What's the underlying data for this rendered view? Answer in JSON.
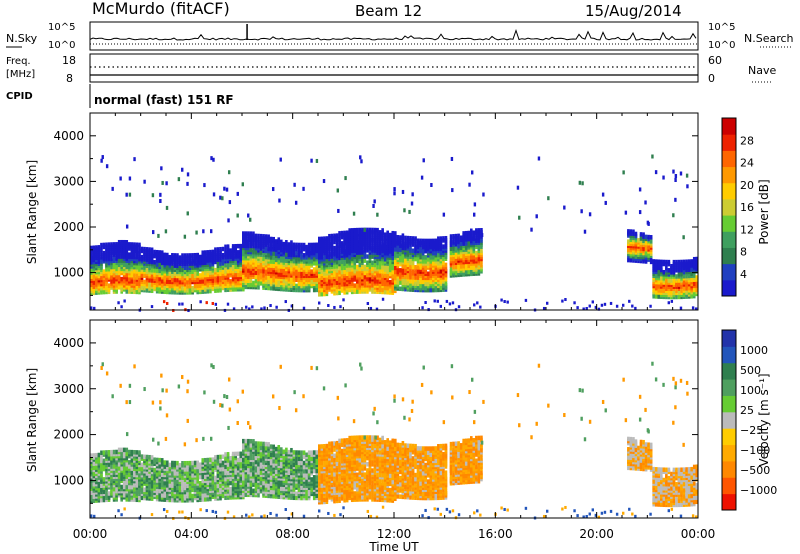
{
  "header": {
    "station": "McMurdo (fitACF)",
    "beam": "Beam 12",
    "date": "15/Aug/2014"
  },
  "top_panels": {
    "nsky_label": "N.Sky",
    "nsearch_label": "N.Search",
    "noise_ticks": [
      "10^5",
      "10^0"
    ],
    "freq_label": "Freq.",
    "freq_unit": "[MHz]",
    "freq_ticks": [
      "18",
      "8"
    ],
    "nave_label": "Nave",
    "nave_ticks": [
      "60",
      "0"
    ],
    "cpid_label": "CPID",
    "cpid_text": "normal (fast) 151 RF"
  },
  "x_axis": {
    "label": "Time UT",
    "ticks": [
      "00:00",
      "04:00",
      "08:00",
      "12:00",
      "16:00",
      "20:00",
      "00:00"
    ],
    "range_hours": [
      0,
      24
    ]
  },
  "y_axis": {
    "label": "Slant Range [km]",
    "ticks": [
      "1000",
      "2000",
      "3000",
      "4000"
    ],
    "range_km": [
      180,
      4500
    ]
  },
  "power_colorbar": {
    "label": "Power [dB]",
    "ticks": [
      "4",
      "8",
      "12",
      "16",
      "20",
      "24",
      "28"
    ],
    "colors": [
      "#1a1acc",
      "#2040c0",
      "#2f7f4f",
      "#3f9f5f",
      "#66cc33",
      "#cccc33",
      "#ffcc00",
      "#ff9900",
      "#ff6600",
      "#ee2200",
      "#cc0000"
    ]
  },
  "velocity_colorbar": {
    "label": "Velocity [m s⁻¹]",
    "ticks": [
      "1000",
      "500",
      "100",
      "25",
      "−25",
      "−100",
      "−500",
      "−1000"
    ],
    "colors": [
      "#2233aa",
      "#2255bb",
      "#2f7f4f",
      "#4f9f5f",
      "#66cc33",
      "#bbbbbb",
      "#ffcc00",
      "#ffaa00",
      "#ff8800",
      "#ff5500",
      "#ee1100"
    ]
  },
  "chart_data": {
    "type": "heatmap",
    "description_fields": [
      "time_hours",
      "range_km"
    ],
    "power_bands": [
      {
        "start": 0.0,
        "end": 2.0,
        "lower_km": 600,
        "upper_km": 1600,
        "core_km": 850
      },
      {
        "start": 2.0,
        "end": 6.0,
        "lower_km": 650,
        "upper_km": 1550,
        "core_km": 900
      },
      {
        "start": 6.0,
        "end": 9.0,
        "lower_km": 700,
        "upper_km": 1800,
        "core_km": 1050
      },
      {
        "start": 9.0,
        "end": 12.0,
        "lower_km": 600,
        "upper_km": 1900,
        "core_km": 850
      },
      {
        "start": 12.0,
        "end": 14.0,
        "lower_km": 700,
        "upper_km": 1900,
        "core_km": 1100
      },
      {
        "start": 14.2,
        "end": 15.4,
        "lower_km": 1000,
        "upper_km": 1900,
        "core_km": 1300
      },
      {
        "start": 21.2,
        "end": 22.2,
        "lower_km": 1300,
        "upper_km": 1900,
        "core_km": 1600
      },
      {
        "start": 22.2,
        "end": 24.0,
        "lower_km": 550,
        "upper_km": 1400,
        "core_km": 800
      }
    ],
    "velocity_mostly": "-100"
  }
}
